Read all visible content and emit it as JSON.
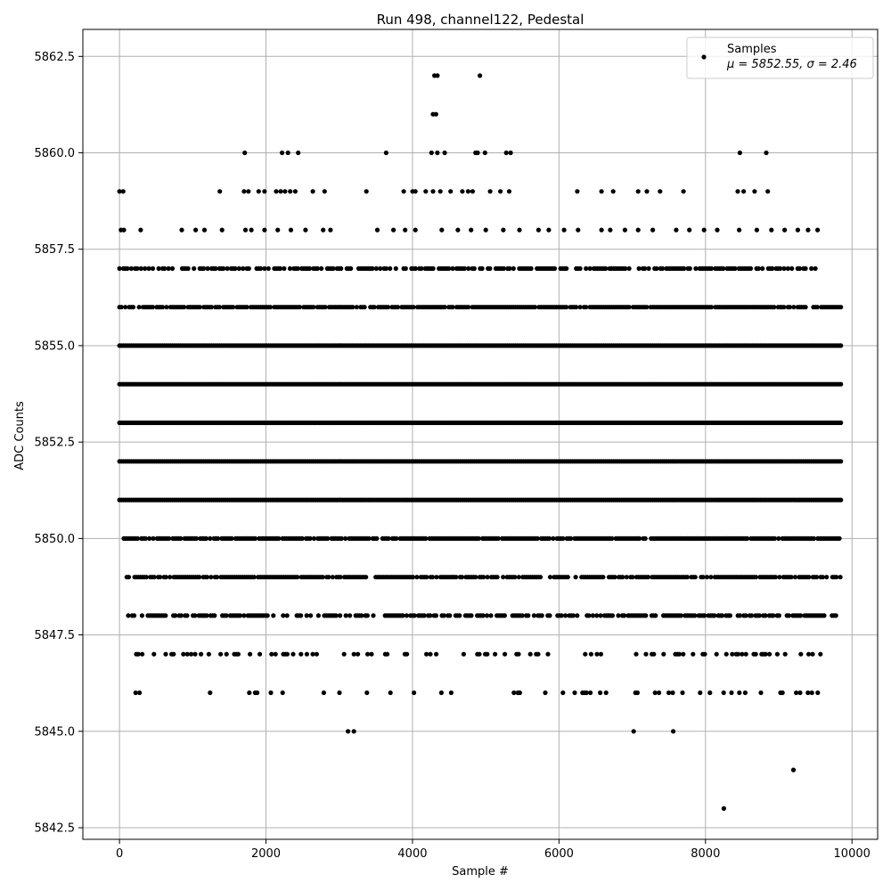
{
  "chart_data": {
    "type": "scatter",
    "title": "Run 498, channel122, Pedestal",
    "xlabel": "Sample #",
    "ylabel": "ADC Counts",
    "xlim": [
      -500,
      10350
    ],
    "ylim": [
      5842.2,
      5863.2
    ],
    "x_ticks": [
      "0",
      "2000",
      "4000",
      "6000",
      "8000",
      "10000"
    ],
    "x_tick_values": [
      0,
      2000,
      4000,
      6000,
      8000,
      10000
    ],
    "y_ticks": [
      "5842.5",
      "5845.0",
      "5847.5",
      "5850.0",
      "5852.5",
      "5855.0",
      "5857.5",
      "5860.0",
      "5862.5"
    ],
    "y_tick_values": [
      5842.5,
      5845.0,
      5847.5,
      5850.0,
      5852.5,
      5855.0,
      5857.5,
      5860.0,
      5862.5
    ],
    "grid": true,
    "legend": {
      "placement": "top-right",
      "title": "Samples",
      "stats": "μ = 5852.55, σ = 2.46"
    },
    "marker_color": "#000000",
    "n_samples": 9850,
    "series": [
      {
        "name": "Samples",
        "points": [
          [
            3120,
            5845
          ],
          [
            3200,
            5845
          ],
          [
            7020,
            5845
          ],
          [
            7560,
            5845
          ],
          [
            8250,
            5843
          ],
          [
            9200,
            5844
          ],
          [
            4300,
            5862
          ],
          [
            4340,
            5862
          ],
          [
            4920,
            5862
          ],
          [
            4280,
            5861
          ],
          [
            4320,
            5861
          ],
          [
            1710,
            5860
          ],
          [
            2220,
            5860
          ],
          [
            2300,
            5860
          ],
          [
            2440,
            5860
          ],
          [
            3640,
            5860
          ],
          [
            4260,
            5860
          ],
          [
            4340,
            5860
          ],
          [
            4440,
            5860
          ],
          [
            4860,
            5860
          ],
          [
            4890,
            5860
          ],
          [
            4990,
            5860
          ],
          [
            5280,
            5860
          ],
          [
            5340,
            5860
          ],
          [
            8470,
            5860
          ],
          [
            8830,
            5860
          ],
          [
            0,
            5859
          ],
          [
            50,
            5859
          ],
          [
            1370,
            5859
          ],
          [
            1700,
            5859
          ],
          [
            1760,
            5859
          ],
          [
            1900,
            5859
          ],
          [
            1980,
            5859
          ],
          [
            2140,
            5859
          ],
          [
            2200,
            5859
          ],
          [
            2260,
            5859
          ],
          [
            2330,
            5859
          ],
          [
            2400,
            5859
          ],
          [
            2640,
            5859
          ],
          [
            2800,
            5859
          ],
          [
            3370,
            5859
          ],
          [
            3880,
            5859
          ],
          [
            4000,
            5859
          ],
          [
            4040,
            5859
          ],
          [
            4180,
            5859
          ],
          [
            4280,
            5859
          ],
          [
            4380,
            5859
          ],
          [
            4520,
            5859
          ],
          [
            4680,
            5859
          ],
          [
            4760,
            5859
          ],
          [
            4820,
            5859
          ],
          [
            5060,
            5859
          ],
          [
            5200,
            5859
          ],
          [
            5320,
            5859
          ],
          [
            6250,
            5859
          ],
          [
            6580,
            5859
          ],
          [
            6740,
            5859
          ],
          [
            7080,
            5859
          ],
          [
            7200,
            5859
          ],
          [
            7380,
            5859
          ],
          [
            7700,
            5859
          ],
          [
            8440,
            5859
          ],
          [
            8520,
            5859
          ],
          [
            8670,
            5859
          ],
          [
            8850,
            5859
          ],
          [
            20,
            5858
          ],
          [
            60,
            5858
          ],
          [
            290,
            5858
          ],
          [
            850,
            5858
          ],
          [
            1040,
            5858
          ],
          [
            1160,
            5858
          ],
          [
            1400,
            5858
          ],
          [
            1720,
            5858
          ],
          [
            1800,
            5858
          ],
          [
            1980,
            5858
          ],
          [
            2160,
            5858
          ],
          [
            2340,
            5858
          ],
          [
            2540,
            5858
          ],
          [
            2780,
            5858
          ],
          [
            2880,
            5858
          ],
          [
            3520,
            5858
          ],
          [
            3740,
            5858
          ],
          [
            3900,
            5858
          ],
          [
            4040,
            5858
          ],
          [
            4400,
            5858
          ],
          [
            4620,
            5858
          ],
          [
            4800,
            5858
          ],
          [
            5000,
            5858
          ],
          [
            5240,
            5858
          ],
          [
            5460,
            5858
          ],
          [
            5720,
            5858
          ],
          [
            5860,
            5858
          ],
          [
            6070,
            5858
          ],
          [
            6260,
            5858
          ],
          [
            6580,
            5858
          ],
          [
            6700,
            5858
          ],
          [
            6900,
            5858
          ],
          [
            7080,
            5858
          ],
          [
            7280,
            5858
          ],
          [
            7600,
            5858
          ],
          [
            7780,
            5858
          ],
          [
            7980,
            5858
          ],
          [
            8160,
            5858
          ],
          [
            8460,
            5858
          ],
          [
            8700,
            5858
          ],
          [
            8900,
            5858
          ],
          [
            9080,
            5858
          ],
          [
            9260,
            5858
          ],
          [
            9400,
            5858
          ],
          [
            9530,
            5858
          ]
        ],
        "dense_bands": [
          {
            "y": 5857,
            "x_from": 0,
            "x_to": 9530,
            "density": 0.6
          },
          {
            "y": 5856,
            "x_from": 0,
            "x_to": 9850,
            "density": 0.85
          },
          {
            "y": 5855,
            "x_from": 0,
            "x_to": 9850,
            "density": 1.0
          },
          {
            "y": 5854,
            "x_from": 0,
            "x_to": 9850,
            "density": 1.0
          },
          {
            "y": 5853,
            "x_from": 0,
            "x_to": 9850,
            "density": 1.0
          },
          {
            "y": 5852,
            "x_from": 0,
            "x_to": 9850,
            "density": 1.0
          },
          {
            "y": 5851,
            "x_from": 0,
            "x_to": 9850,
            "density": 1.0
          },
          {
            "y": 5850,
            "x_from": 60,
            "x_to": 9850,
            "density": 0.9
          },
          {
            "y": 5849,
            "x_from": 100,
            "x_to": 9850,
            "density": 0.75
          },
          {
            "y": 5848,
            "x_from": 120,
            "x_to": 9850,
            "density": 0.6
          },
          {
            "y": 5847,
            "x_from": 150,
            "x_to": 9730,
            "density": 0.3
          },
          {
            "y": 5846,
            "x_from": 140,
            "x_to": 9700,
            "density": 0.15
          }
        ]
      }
    ]
  }
}
